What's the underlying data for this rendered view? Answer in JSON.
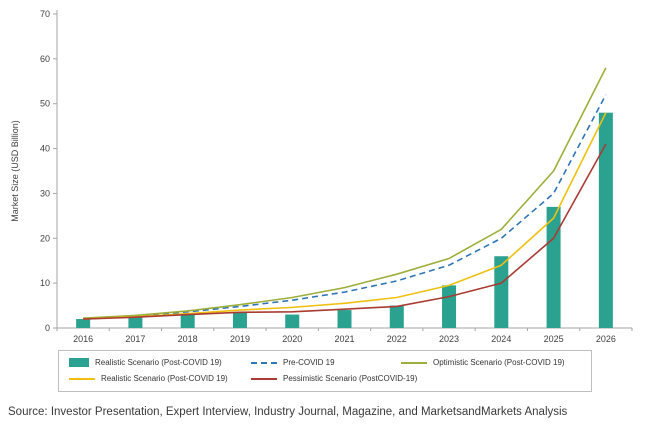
{
  "chart_data": {
    "type": "bar",
    "title": "",
    "xlabel": "",
    "ylabel": "Market Size (USD Billion)",
    "ylim": [
      0,
      70
    ],
    "yticks": [
      0,
      10,
      20,
      30,
      40,
      50,
      60,
      70
    ],
    "grid": false,
    "legend_position": "bottom",
    "categories": [
      "2016",
      "2017",
      "2018",
      "2019",
      "2020",
      "2021",
      "2022",
      "2023",
      "2024",
      "2025",
      "2026"
    ],
    "bar_series": {
      "name": "Realistic Scenario (Post-COVID 19)",
      "color": "#2BA18F",
      "values": [
        2,
        2.5,
        3,
        3.5,
        3,
        4,
        5,
        9.5,
        16,
        27,
        48
      ]
    },
    "line_series": [
      {
        "name": "Pre-COVID 19",
        "color": "#2E75B6",
        "dash": "6 4",
        "values": [
          2,
          2.6,
          3.6,
          4.8,
          6.2,
          8,
          10.5,
          14,
          20,
          30,
          52
        ]
      },
      {
        "name": "Optimistic Scenario (Post-COVID 19)",
        "color": "#9DAE3B",
        "dash": "",
        "values": [
          2.2,
          2.8,
          3.8,
          5.2,
          6.8,
          9,
          12,
          15.5,
          22,
          35,
          58
        ]
      },
      {
        "name": "Realistic Scenario (Post-COVID 19)",
        "color": "#F0C010",
        "dash": "",
        "values": [
          2,
          2.5,
          3.2,
          4,
          4.6,
          5.5,
          6.8,
          9.5,
          14,
          24.5,
          48
        ]
      },
      {
        "name": "Pessimistic Scenario (PostCOVID-19)",
        "color": "#A93B32",
        "dash": "",
        "values": [
          2,
          2.4,
          3,
          3.5,
          3.6,
          4.2,
          4.8,
          7,
          10,
          20,
          41
        ]
      }
    ],
    "legend": [
      {
        "label": "Realistic Scenario (Post-COVID 19)",
        "marker": "bar",
        "color": "#2BA18F"
      },
      {
        "label": "Pre-COVID 19",
        "marker": "dashed-line",
        "color": "#2E75B6"
      },
      {
        "label": "Optimistic Scenario (Post-COVID 19)",
        "marker": "line",
        "color": "#9DAE3B"
      },
      {
        "label": "Realistic Scenario (Post-COVID 19)",
        "marker": "line",
        "color": "#F0C010"
      },
      {
        "label": "Pessimistic Scenario (PostCOVID-19)",
        "marker": "line",
        "color": "#A93B32"
      }
    ]
  },
  "source": "Source: Investor Presentation, Expert Interview, Industry Journal, Magazine, and MarketsandMarkets Analysis"
}
